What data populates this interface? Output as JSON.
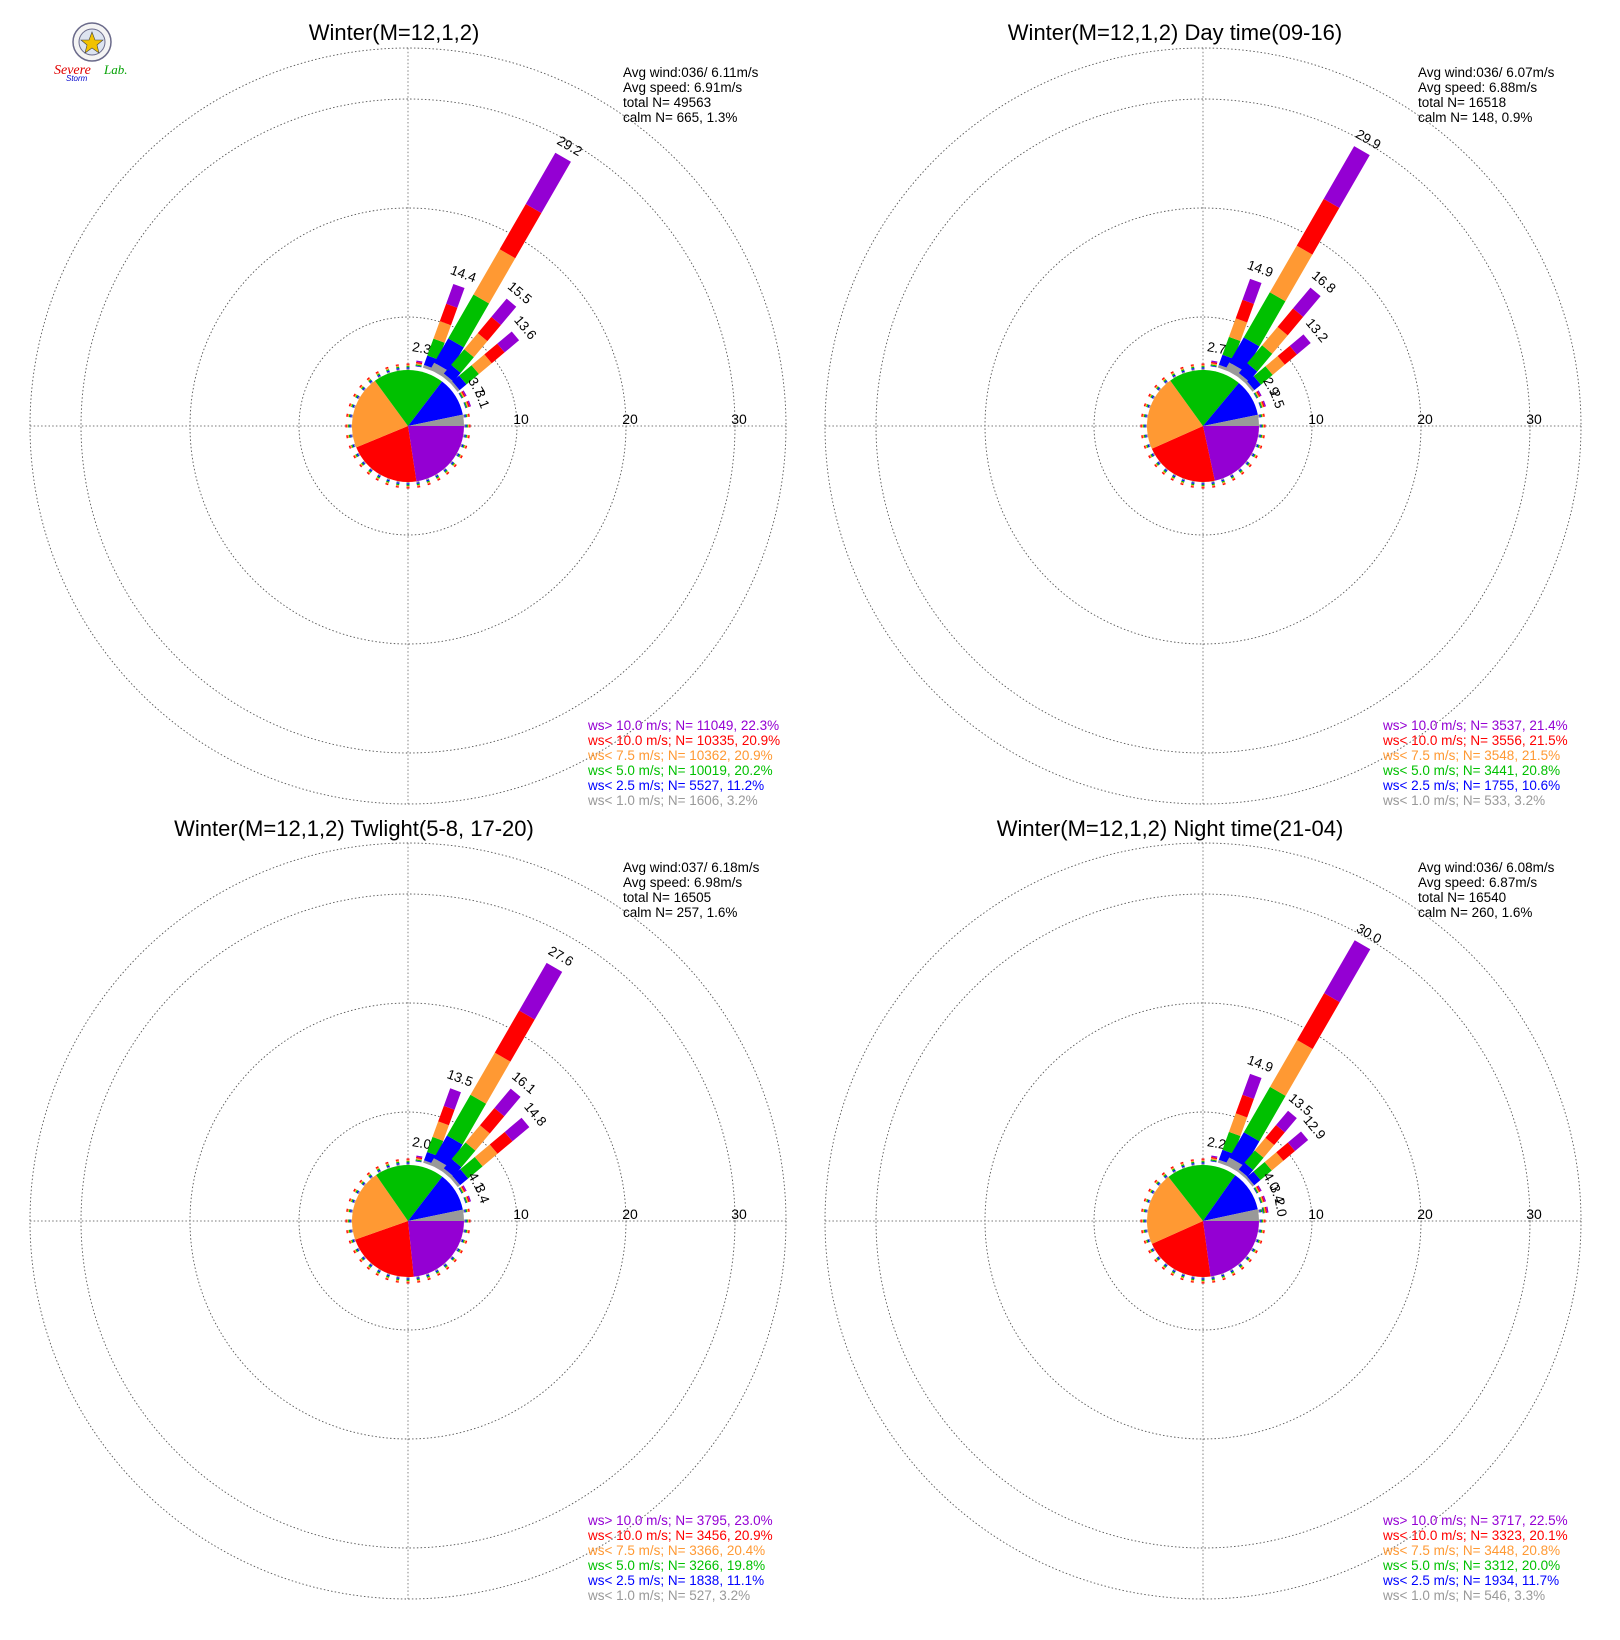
{
  "colors": {
    "purple": "#9400d3",
    "red": "#ff0000",
    "orange": "#ff9933",
    "green": "#00c000",
    "blue": "#0000ff",
    "gray": "#999999"
  },
  "logo": {
    "text_a": "Severe",
    "text_b": "Storm",
    "text_c": "Lab."
  },
  "chart_data": [
    {
      "type": "wind-rose",
      "title": "Winter(M=12,1,2)",
      "info": [
        "Avg wind:036/ 6.11m/s",
        "Avg speed: 6.91m/s",
        "total N=      49563",
        "calm N=    665,   1.3%"
      ],
      "legend": [
        {
          "label": "ws> 10.0 m/s; N= 11049, 22.3%",
          "color": "purple"
        },
        {
          "label": "ws< 10.0 m/s; N= 10335, 20.9%",
          "color": "red"
        },
        {
          "label": "ws<  7.5 m/s; N= 10362, 20.9%",
          "color": "orange"
        },
        {
          "label": "ws<  5.0 m/s; N= 10019, 20.2%",
          "color": "green"
        },
        {
          "label": "ws<  2.5 m/s; N=  5527, 11.2%",
          "color": "blue"
        },
        {
          "label": "ws<  1.0 m/s; N=  1606,   3.2%",
          "color": "gray"
        }
      ],
      "radial_ticks": [
        "10",
        "20",
        "30"
      ],
      "rmax": 30,
      "directions_deg": [
        10,
        20,
        30,
        40,
        50,
        60,
        70
      ],
      "petal_values": [
        2.3,
        14.4,
        29.2,
        15.5,
        13.6,
        3.7,
        3.1
      ],
      "petal_labels": [
        "2.3",
        "14.4",
        "29.2",
        "15.5",
        "13.6",
        "3.7",
        "3.1"
      ],
      "pie_percent": [
        22.3,
        20.9,
        20.9,
        20.2,
        11.2,
        3.2
      ]
    },
    {
      "type": "wind-rose",
      "title": "Winter(M=12,1,2) Day time(09-16)",
      "info": [
        "Avg wind:036/ 6.07m/s",
        "Avg speed: 6.88m/s",
        "total N=      16518",
        "calm N=    148,   0.9%"
      ],
      "legend": [
        {
          "label": "ws> 10.0 m/s; N=  3537, 21.4%",
          "color": "purple"
        },
        {
          "label": "ws< 10.0 m/s; N=  3556, 21.5%",
          "color": "red"
        },
        {
          "label": "ws<  7.5 m/s; N=  3548, 21.5%",
          "color": "orange"
        },
        {
          "label": "ws<  5.0 m/s; N=  3441, 20.8%",
          "color": "green"
        },
        {
          "label": "ws<  2.5 m/s; N=  1755, 10.6%",
          "color": "blue"
        },
        {
          "label": "ws<  1.0 m/s; N=    533,   3.2%",
          "color": "gray"
        }
      ],
      "radial_ticks": [
        "10",
        "20",
        "30"
      ],
      "rmax": 30,
      "directions_deg": [
        10,
        20,
        30,
        40,
        50,
        60,
        70
      ],
      "petal_values": [
        2.7,
        14.9,
        29.9,
        16.8,
        13.2,
        2.9,
        2.5
      ],
      "petal_labels": [
        "2.7",
        "14.9",
        "29.9",
        "16.8",
        "13.2",
        "2.9",
        "2.5"
      ],
      "pie_percent": [
        21.4,
        21.5,
        21.5,
        20.8,
        10.6,
        3.2
      ]
    },
    {
      "type": "wind-rose",
      "title": "Winter(M=12,1,2) Twlight(5-8, 17-20)",
      "info": [
        "Avg wind:037/ 6.18m/s",
        "Avg speed: 6.98m/s",
        "total N=      16505",
        "calm N=    257,   1.6%"
      ],
      "legend": [
        {
          "label": "ws> 10.0 m/s; N=  3795, 23.0%",
          "color": "purple"
        },
        {
          "label": "ws< 10.0 m/s; N=  3456, 20.9%",
          "color": "red"
        },
        {
          "label": "ws<  7.5 m/s; N=  3366, 20.4%",
          "color": "orange"
        },
        {
          "label": "ws<  5.0 m/s; N=  3266, 19.8%",
          "color": "green"
        },
        {
          "label": "ws<  2.5 m/s; N=  1838, 11.1%",
          "color": "blue"
        },
        {
          "label": "ws<  1.0 m/s; N=    527,   3.2%",
          "color": "gray"
        }
      ],
      "radial_ticks": [
        "10",
        "20",
        "30"
      ],
      "rmax": 30,
      "directions_deg": [
        10,
        20,
        30,
        40,
        50,
        60,
        70
      ],
      "petal_values": [
        2.0,
        13.5,
        27.6,
        16.1,
        14.8,
        4.1,
        3.4
      ],
      "petal_labels": [
        "2.0",
        "13.5",
        "27.6",
        "16.1",
        "14.8",
        "4.1",
        "3.4"
      ],
      "pie_percent": [
        23.0,
        20.9,
        20.4,
        19.8,
        11.1,
        3.2
      ]
    },
    {
      "type": "wind-rose",
      "title": "Winter(M=12,1,2) Night time(21-04)",
      "info": [
        "Avg wind:036/ 6.08m/s",
        "Avg speed: 6.87m/s",
        "total N=      16540",
        "calm N=    260,   1.6%"
      ],
      "legend": [
        {
          "label": "ws> 10.0 m/s; N=  3717, 22.5%",
          "color": "purple"
        },
        {
          "label": "ws< 10.0 m/s; N=  3323, 20.1%",
          "color": "red"
        },
        {
          "label": "ws<  7.5 m/s; N=  3448, 20.8%",
          "color": "orange"
        },
        {
          "label": "ws<  5.0 m/s; N=  3312, 20.0%",
          "color": "green"
        },
        {
          "label": "ws<  2.5 m/s; N=  1934, 11.7%",
          "color": "blue"
        },
        {
          "label": "ws<  1.0 m/s; N=    546,   3.3%",
          "color": "gray"
        }
      ],
      "radial_ticks": [
        "10",
        "20",
        "30"
      ],
      "rmax": 30,
      "directions_deg": [
        10,
        20,
        30,
        40,
        50,
        60,
        70,
        80
      ],
      "petal_values": [
        2.2,
        14.9,
        30.0,
        13.5,
        12.9,
        4.0,
        3.4,
        2.0
      ],
      "petal_labels": [
        "2.2",
        "14.9",
        "30.0",
        "13.5",
        "12.9",
        "4.0",
        "3.4",
        "2.0"
      ],
      "pie_percent": [
        22.5,
        20.1,
        20.8,
        20.0,
        11.7,
        3.3
      ]
    }
  ]
}
